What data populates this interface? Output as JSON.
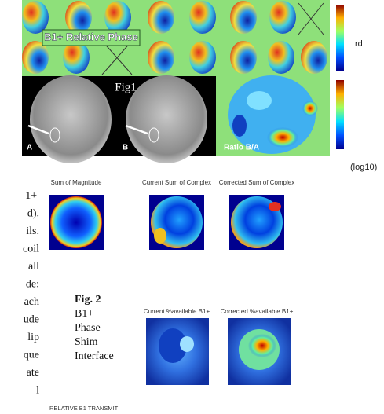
{
  "figure1": {
    "phase_label": "B1+ Relative Phase",
    "phase_unit": "rd",
    "title": "Fig1",
    "panel_a": "A",
    "panel_b": "B",
    "ratio_label": "Ratio B/A",
    "ratio_unit": "(log10)"
  },
  "figure2": {
    "top_titles": [
      "Sum of Magnitude",
      "Current Sum of Complex",
      "Corrected Sum of Complex"
    ],
    "bottom_titles": [
      "Current %available B1+",
      "Corrected %available B1+"
    ],
    "caption": [
      "Fig. 2",
      "B1+",
      "Phase",
      "Shim",
      "Interface"
    ],
    "footer": "RELATIVE B1 TRANSMIT"
  },
  "left_text": {
    "lines": [
      "1+|",
      "d).",
      "ils.",
      "coil",
      "all",
      "de:",
      "ach",
      "ude",
      "lip",
      "que",
      "ate",
      "l"
    ]
  }
}
